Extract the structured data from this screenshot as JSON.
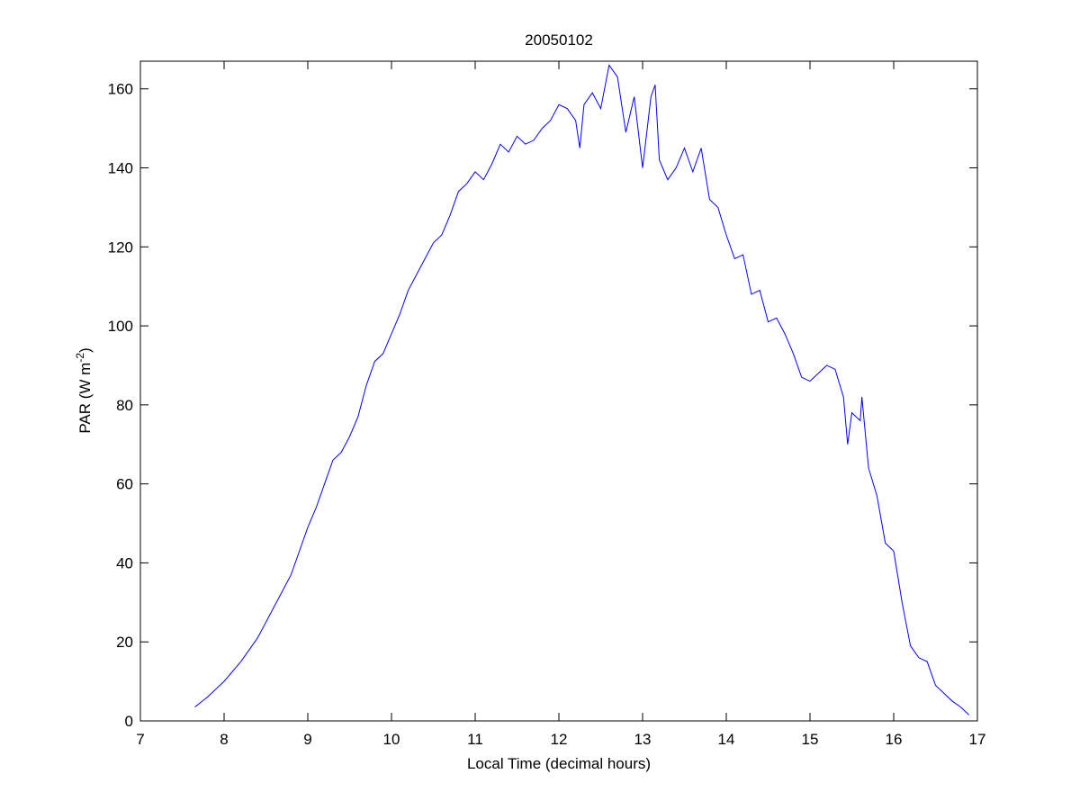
{
  "chart_data": {
    "type": "line",
    "title": "20050102",
    "x_label": "Local Time (decimal hours)",
    "y_label": {
      "text": "PAR (W m",
      "superscript": "-2",
      "suffix": ")"
    },
    "xlim": [
      7,
      17
    ],
    "xticks": [
      7,
      8,
      9,
      10,
      11,
      12,
      13,
      14,
      15,
      16,
      17
    ],
    "ylim": [
      0,
      167
    ],
    "yticks": [
      0,
      20,
      40,
      60,
      80,
      100,
      120,
      140,
      160
    ],
    "grid": false,
    "series": [
      {
        "color": "#0000ff",
        "x": [
          7.65,
          7.8,
          8.0,
          8.2,
          8.4,
          8.6,
          8.8,
          8.9,
          9.0,
          9.1,
          9.2,
          9.3,
          9.4,
          9.5,
          9.6,
          9.7,
          9.8,
          9.9,
          10.0,
          10.1,
          10.2,
          10.3,
          10.4,
          10.5,
          10.6,
          10.7,
          10.8,
          10.9,
          11.0,
          11.1,
          11.2,
          11.3,
          11.4,
          11.5,
          11.6,
          11.7,
          11.8,
          11.9,
          12.0,
          12.1,
          12.2,
          12.25,
          12.3,
          12.4,
          12.5,
          12.6,
          12.7,
          12.8,
          12.9,
          13.0,
          13.1,
          13.15,
          13.2,
          13.3,
          13.4,
          13.5,
          13.6,
          13.7,
          13.8,
          13.9,
          14.0,
          14.1,
          14.2,
          14.3,
          14.4,
          14.5,
          14.6,
          14.7,
          14.8,
          14.9,
          15.0,
          15.1,
          15.2,
          15.3,
          15.4,
          15.45,
          15.5,
          15.6,
          15.62,
          15.7,
          15.8,
          15.9,
          16.0,
          16.1,
          16.2,
          16.3,
          16.4,
          16.5,
          16.6,
          16.7,
          16.8,
          16.9
        ],
        "values": [
          3.5,
          6,
          10,
          15,
          21,
          29,
          37,
          43,
          49,
          54,
          60,
          66,
          68,
          72,
          77,
          85,
          91,
          93,
          98,
          103,
          109,
          113,
          117,
          121,
          123,
          128,
          134,
          136,
          139,
          137,
          141,
          146,
          144,
          148,
          146,
          147,
          150,
          152,
          156,
          155,
          152,
          145,
          156,
          159,
          155,
          166,
          163,
          149,
          158,
          140,
          158,
          161,
          142,
          137,
          140,
          145,
          139,
          145,
          132,
          130,
          123,
          117,
          118,
          108,
          109,
          101,
          102,
          98,
          93,
          87,
          86,
          88,
          90,
          89,
          82,
          70,
          78,
          76,
          82,
          64,
          57,
          45,
          43,
          30,
          19,
          16,
          15,
          9,
          7,
          5,
          3.5,
          1.5
        ]
      }
    ]
  }
}
